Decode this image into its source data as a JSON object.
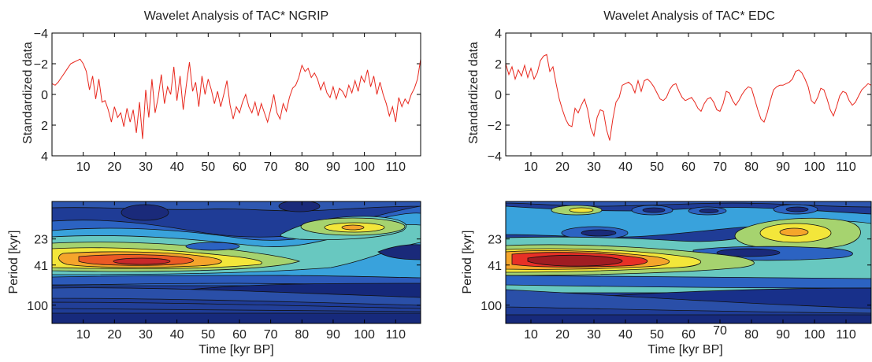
{
  "chart_data": [
    {
      "type": "line",
      "title": "Wavelet Analysis of TAC* NGRIP",
      "xlabel": "",
      "ylabel": "Standardized data",
      "xlim": [
        0,
        118
      ],
      "ylim": [
        -4,
        4
      ],
      "y_reversed": true,
      "xticks": [
        10,
        20,
        30,
        40,
        50,
        60,
        70,
        80,
        90,
        100,
        110
      ],
      "yticks": [
        -4,
        -2,
        0,
        2,
        4
      ],
      "ytick_labels": [
        "−4",
        "−2",
        "0",
        "2",
        "4"
      ],
      "series": [
        {
          "color": "#e8281e",
          "x": [
            0,
            1,
            2,
            3,
            4,
            5,
            6,
            7,
            8,
            9,
            10,
            11,
            12,
            13,
            14,
            15,
            16,
            17,
            18,
            19,
            20,
            21,
            22,
            23,
            24,
            25,
            26,
            27,
            28,
            29,
            30,
            31,
            32,
            33,
            34,
            35,
            36,
            37,
            38,
            39,
            40,
            41,
            42,
            43,
            44,
            45,
            46,
            47,
            48,
            49,
            50,
            51,
            52,
            53,
            54,
            55,
            56,
            57,
            58,
            59,
            60,
            61,
            62,
            63,
            64,
            65,
            66,
            67,
            68,
            69,
            70,
            71,
            72,
            73,
            74,
            75,
            76,
            77,
            78,
            79,
            80,
            81,
            82,
            83,
            84,
            85,
            86,
            87,
            88,
            89,
            90,
            91,
            92,
            93,
            94,
            95,
            96,
            97,
            98,
            99,
            100,
            101,
            102,
            103,
            104,
            105,
            106,
            107,
            108,
            109,
            110,
            111,
            112,
            113,
            114,
            115,
            116,
            117,
            118
          ],
          "y": [
            -0.7,
            -0.6,
            -0.8,
            -1.1,
            -1.4,
            -1.7,
            -2.0,
            -2.1,
            -2.2,
            -2.3,
            -2.0,
            -1.5,
            -0.3,
            -1.2,
            0.3,
            -1.0,
            0.5,
            0.4,
            1.0,
            1.8,
            0.8,
            1.5,
            1.2,
            2.1,
            0.9,
            1.8,
            1.0,
            2.5,
            0.5,
            2.9,
            -0.3,
            1.5,
            -1.0,
            1.2,
            0.2,
            -1.3,
            0.6,
            -0.5,
            0.0,
            -1.8,
            0.4,
            -1.2,
            1.0,
            -0.6,
            -2.1,
            -0.2,
            -0.8,
            0.8,
            -1.2,
            0.0,
            -1.0,
            -0.3,
            0.6,
            -0.2,
            0.8,
            0.0,
            -0.9,
            0.7,
            1.6,
            0.8,
            1.2,
            0.5,
            0.0,
            0.8,
            1.2,
            0.5,
            1.4,
            0.6,
            1.2,
            1.8,
            1.0,
            0.0,
            1.2,
            1.6,
            0.6,
            1.1,
            0.2,
            -0.4,
            -0.6,
            -1.1,
            -1.9,
            -1.5,
            -1.7,
            -1.1,
            -1.4,
            -1.0,
            -0.3,
            -0.8,
            -0.1,
            0.2,
            -0.5,
            0.3,
            -0.4,
            -0.2,
            0.2,
            -0.6,
            -0.1,
            -0.9,
            -0.2,
            -1.2,
            -0.8,
            -1.6,
            -0.5,
            -1.2,
            0.0,
            -0.8,
            0.0,
            0.6,
            1.4,
            0.8,
            1.8,
            0.2,
            0.8,
            0.3,
            0.6,
            0.0,
            -0.4,
            -1.0,
            -2.3
          ]
        }
      ]
    },
    {
      "type": "heatmap",
      "title": "",
      "xlabel": "Time [kyr BP]",
      "ylabel": "Period [kyr]",
      "xlim": [
        0,
        118
      ],
      "xticks": [
        10,
        20,
        30,
        40,
        50,
        60,
        70,
        80,
        90,
        100,
        110
      ],
      "yticks": [
        23,
        41,
        100
      ],
      "y_scale": "log",
      "y_reversed": true
    },
    {
      "type": "line",
      "title": "Wavelet Analysis of TAC* EDC",
      "xlabel": "",
      "ylabel": "Standardized data",
      "xlim": [
        2,
        118
      ],
      "ylim": [
        -4,
        4
      ],
      "xticks": [
        10,
        20,
        30,
        40,
        50,
        60,
        70,
        80,
        90,
        100,
        110
      ],
      "yticks": [
        -4,
        -2,
        0,
        2,
        4
      ],
      "ytick_labels": [
        "−4",
        "−2",
        "0",
        "2",
        "4"
      ],
      "series": [
        {
          "color": "#e8281e",
          "x": [
            2,
            3,
            4,
            5,
            6,
            7,
            8,
            9,
            10,
            11,
            12,
            13,
            14,
            15,
            16,
            17,
            18,
            19,
            20,
            21,
            22,
            23,
            24,
            25,
            26,
            27,
            28,
            29,
            30,
            31,
            32,
            33,
            34,
            35,
            36,
            37,
            38,
            39,
            40,
            41,
            42,
            43,
            44,
            45,
            46,
            47,
            48,
            49,
            50,
            51,
            52,
            53,
            54,
            55,
            56,
            57,
            58,
            59,
            60,
            61,
            62,
            63,
            64,
            65,
            66,
            67,
            68,
            69,
            70,
            71,
            72,
            73,
            74,
            75,
            76,
            77,
            78,
            79,
            80,
            81,
            82,
            83,
            84,
            85,
            86,
            87,
            88,
            89,
            90,
            91,
            92,
            93,
            94,
            95,
            96,
            97,
            98,
            99,
            100,
            101,
            102,
            103,
            104,
            105,
            106,
            107,
            108,
            109,
            110,
            111,
            112,
            113,
            114,
            115,
            116,
            117,
            118
          ],
          "y": [
            2.0,
            1.3,
            1.8,
            1.0,
            1.6,
            1.2,
            1.9,
            1.1,
            1.7,
            1.0,
            1.4,
            2.2,
            2.5,
            2.6,
            1.5,
            1.8,
            0.7,
            -0.3,
            -1.0,
            -1.6,
            -2.0,
            -2.1,
            -0.9,
            -1.2,
            -0.7,
            -0.3,
            -1.0,
            -2.2,
            -2.7,
            -1.5,
            -1.0,
            -1.1,
            -2.3,
            -3.0,
            -1.6,
            -0.5,
            -0.2,
            0.6,
            0.7,
            0.8,
            0.6,
            0.1,
            0.9,
            0.2,
            0.9,
            1.0,
            0.8,
            0.5,
            0.1,
            -0.3,
            -0.4,
            -0.2,
            0.3,
            0.6,
            0.7,
            0.2,
            -0.2,
            -0.4,
            -0.3,
            -0.2,
            -0.5,
            -0.9,
            -1.1,
            -0.6,
            -0.3,
            -0.2,
            -0.5,
            -1.0,
            -1.1,
            -0.6,
            0.2,
            0.1,
            -0.4,
            -0.7,
            -0.4,
            0.0,
            0.3,
            0.5,
            0.4,
            -0.3,
            -1.0,
            -1.6,
            -1.8,
            -1.2,
            -0.4,
            0.3,
            0.5,
            0.6,
            0.6,
            0.7,
            0.8,
            1.0,
            1.5,
            1.6,
            1.4,
            1.0,
            0.5,
            -0.4,
            -0.6,
            -0.2,
            0.4,
            0.3,
            -0.3,
            -1.0,
            -1.4,
            -0.8,
            -0.1,
            0.2,
            0.1,
            -0.4,
            -0.7,
            -0.5,
            -0.1,
            0.3,
            0.5,
            0.7,
            0.6
          ]
        }
      ]
    },
    {
      "type": "heatmap",
      "title": "",
      "xlabel": "Time [kyr BP]",
      "ylabel": "Period [kyr]",
      "xlim": [
        2,
        118
      ],
      "xticks": [
        10,
        20,
        30,
        40,
        50,
        60,
        70,
        80,
        90,
        100,
        110
      ],
      "yticks": [
        23,
        41,
        100
      ],
      "y_scale": "log",
      "y_reversed": true
    }
  ]
}
